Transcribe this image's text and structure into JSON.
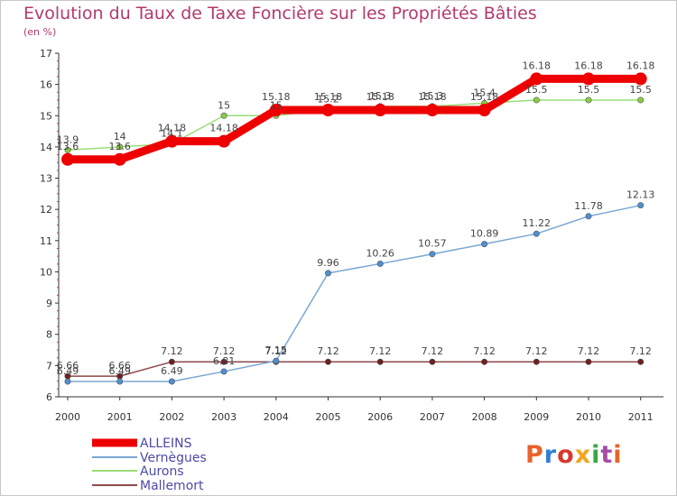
{
  "header": {
    "title": "Evolution du Taux de Taxe Foncière sur les Propriétés Bâties",
    "subtitle": "(en %)"
  },
  "logo": {
    "text": "Proxiti",
    "colors": [
      "#e8632b",
      "#2f7fd6",
      "#d6392f",
      "#f2a51c",
      "#3aa845",
      "#a64ca6",
      "#e8632b"
    ]
  },
  "chart_data": {
    "type": "line",
    "x": [
      2000,
      2001,
      2002,
      2003,
      2004,
      2005,
      2006,
      2007,
      2008,
      2009,
      2010,
      2011
    ],
    "ylim": [
      6,
      17
    ],
    "yticks": [
      6,
      7,
      8,
      9,
      10,
      11,
      12,
      13,
      14,
      15,
      16,
      17
    ],
    "grid": false,
    "legend_position": "bottom-left",
    "series": [
      {
        "name": "ALLEINS",
        "color": "#ee0000",
        "values": [
          13.6,
          13.6,
          14.18,
          14.18,
          15.18,
          15.18,
          15.18,
          15.18,
          15.18,
          16.18,
          16.18,
          16.18
        ],
        "labels": [
          "13.6",
          "13.6",
          "14.18",
          "14.18",
          "15.18",
          "15.18",
          "15.18",
          "15.18",
          "15.18",
          "16.18",
          "16.18",
          "16.18"
        ]
      },
      {
        "name": "Vernègues",
        "color": "#7aa7d4",
        "values": [
          6.49,
          6.49,
          6.49,
          6.81,
          7.15,
          9.96,
          10.26,
          10.57,
          10.89,
          11.22,
          11.78,
          12.13
        ],
        "labels": [
          "6.49",
          "6.49",
          "6.49",
          "6.81",
          "7.15",
          "9.96",
          "10.26",
          "10.57",
          "10.89",
          "11.22",
          "11.78",
          "12.13"
        ]
      },
      {
        "name": "Aurons",
        "color": "#99dd77",
        "values": [
          13.9,
          14.0,
          14.1,
          15.0,
          15.0,
          15.2,
          15.3,
          15.3,
          15.4,
          15.5,
          15.5,
          15.5
        ],
        "labels": [
          "13.9",
          "14",
          "14.1",
          "15",
          "15",
          "15.2",
          "15.3",
          "15.3",
          "15.4",
          "15.5",
          "15.5",
          "15.5"
        ]
      },
      {
        "name": "Mallemort",
        "color": "#8b4a4a",
        "values": [
          6.66,
          6.66,
          7.12,
          7.12,
          7.12,
          7.12,
          7.12,
          7.12,
          7.12,
          7.12,
          7.12,
          7.12
        ],
        "labels": [
          "6.66",
          "6.66",
          "7.12",
          "7.12",
          "7.12",
          "7.12",
          "7.12",
          "7.12",
          "7.12",
          "7.12",
          "7.12",
          "7.12"
        ]
      }
    ]
  }
}
